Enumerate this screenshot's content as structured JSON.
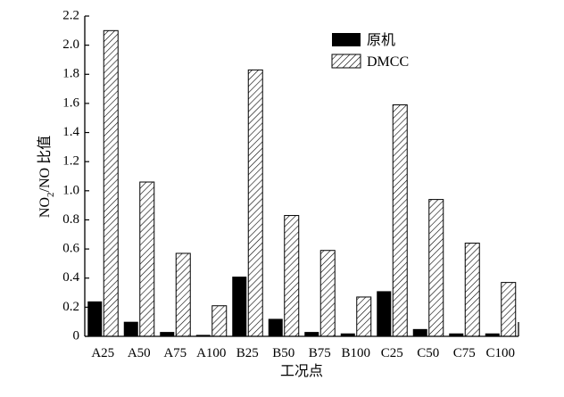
{
  "chart_data": {
    "type": "bar",
    "categories": [
      "A25",
      "A50",
      "A75",
      "A100",
      "B25",
      "B50",
      "B75",
      "B100",
      "C25",
      "C50",
      "C75",
      "C100"
    ],
    "series": [
      {
        "name": "原机",
        "fill": "solid-black",
        "values": [
          0.24,
          0.1,
          0.03,
          0.01,
          0.41,
          0.12,
          0.03,
          0.02,
          0.31,
          0.05,
          0.02,
          0.02
        ]
      },
      {
        "name": "DMCC",
        "fill": "diagonal-hatch",
        "values": [
          2.1,
          1.06,
          0.57,
          0.21,
          1.83,
          0.83,
          0.59,
          0.27,
          1.59,
          0.94,
          0.64,
          0.37
        ]
      }
    ],
    "title": "",
    "xlabel": "工况点",
    "ylabel": "NO2/NO 比值",
    "ylabel_parts": {
      "pre": "NO",
      "sub": "2",
      "post": "/NO 比值"
    },
    "ylim": [
      0,
      2.2
    ],
    "yticks": [
      "0",
      "0.2",
      "0.4",
      "0.6",
      "0.8",
      "1.0",
      "1.2",
      "1.4",
      "1.6",
      "1.8",
      "2.0",
      "2.2"
    ],
    "grid": false,
    "legend_position": "top-right",
    "colors": {
      "axis": "#000000",
      "bar_solid": "#000000",
      "hatch": "#000000",
      "background": "#ffffff"
    }
  }
}
